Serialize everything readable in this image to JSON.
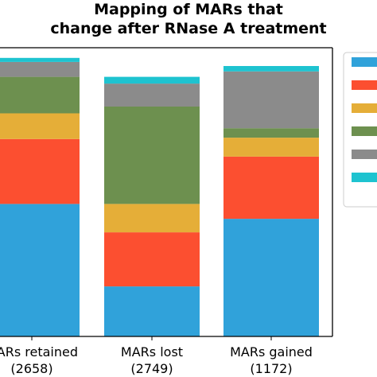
{
  "chart_data": {
    "type": "bar",
    "stacked": true,
    "normalized": true,
    "title_lines": [
      "Mapping of MARs that",
      "change after RNase A treatment"
    ],
    "categories": [
      [
        "MARs retained",
        "(2658)"
      ],
      [
        "MARs lost",
        "(2749)"
      ],
      [
        "MARs gained",
        "(1172)"
      ]
    ],
    "ylim": [
      0,
      1
    ],
    "grid": false,
    "legend_position": "right",
    "series": [
      {
        "color": "#30a2da",
        "values": [
          0.49,
          0.185,
          0.435
        ]
      },
      {
        "color": "#fc4f30",
        "values": [
          0.24,
          0.2,
          0.23
        ]
      },
      {
        "color": "#e5ae38",
        "values": [
          0.095,
          0.105,
          0.07
        ]
      },
      {
        "color": "#6d904f",
        "values": [
          0.135,
          0.36,
          0.035
        ]
      },
      {
        "color": "#8b8b8b",
        "values": [
          0.055,
          0.085,
          0.21
        ]
      },
      {
        "color": "#1ec3d0",
        "values": [
          0.015,
          0.025,
          0.02
        ]
      }
    ]
  }
}
